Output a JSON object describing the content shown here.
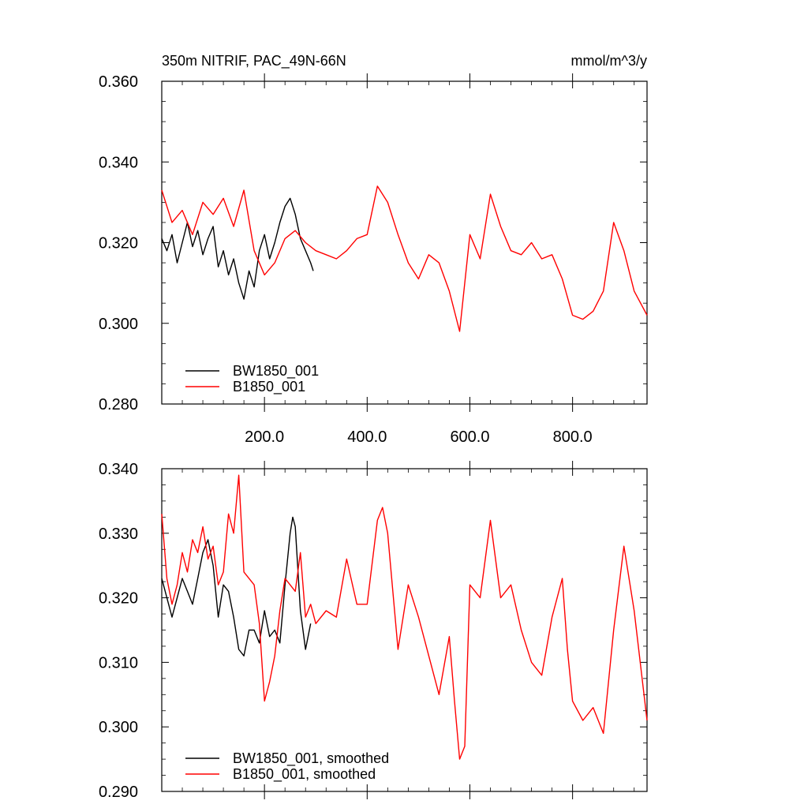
{
  "header": {
    "title": "350m NITRIF, PAC_49N-66N",
    "units": "mmol/m^3/y"
  },
  "colors": {
    "bw": "#000000",
    "b": "#ff0000"
  },
  "chart_data": [
    {
      "type": "line",
      "panel": "raw",
      "xlim": [
        0,
        945
      ],
      "ylim": [
        0.28,
        0.36
      ],
      "yticks": [
        "0.280",
        "0.300",
        "0.320",
        "0.340",
        "0.360"
      ],
      "yticks_values": [
        0.28,
        0.3,
        0.32,
        0.34,
        0.36
      ],
      "xticks": [
        "200.0",
        "400.0",
        "600.0",
        "800.0"
      ],
      "xticks_values": [
        200,
        400,
        600,
        800
      ],
      "legend_placement": "bottom-left",
      "series": [
        {
          "name": "BW1850_001",
          "color": "#000000",
          "x": [
            0,
            10,
            20,
            30,
            40,
            50,
            60,
            70,
            80,
            90,
            100,
            110,
            120,
            130,
            140,
            150,
            160,
            170,
            180,
            190,
            200,
            210,
            220,
            230,
            240,
            250,
            260,
            270,
            280,
            290,
            295
          ],
          "values": [
            0.321,
            0.318,
            0.322,
            0.315,
            0.32,
            0.325,
            0.319,
            0.323,
            0.317,
            0.321,
            0.324,
            0.314,
            0.318,
            0.312,
            0.316,
            0.31,
            0.306,
            0.313,
            0.309,
            0.318,
            0.322,
            0.316,
            0.32,
            0.325,
            0.329,
            0.331,
            0.327,
            0.321,
            0.318,
            0.315,
            0.313
          ]
        },
        {
          "name": "B1850_001",
          "color": "#ff0000",
          "x": [
            0,
            20,
            40,
            60,
            80,
            100,
            120,
            140,
            160,
            180,
            200,
            220,
            240,
            260,
            280,
            300,
            320,
            340,
            360,
            380,
            400,
            420,
            440,
            460,
            480,
            500,
            520,
            540,
            560,
            580,
            600,
            620,
            640,
            660,
            680,
            700,
            720,
            740,
            760,
            780,
            800,
            820,
            840,
            860,
            880,
            900,
            920,
            945
          ],
          "values": [
            0.333,
            0.325,
            0.328,
            0.322,
            0.33,
            0.327,
            0.331,
            0.324,
            0.333,
            0.318,
            0.312,
            0.315,
            0.321,
            0.323,
            0.32,
            0.318,
            0.317,
            0.316,
            0.318,
            0.321,
            0.322,
            0.334,
            0.33,
            0.322,
            0.315,
            0.311,
            0.317,
            0.315,
            0.308,
            0.298,
            0.322,
            0.316,
            0.332,
            0.324,
            0.318,
            0.317,
            0.32,
            0.316,
            0.317,
            0.311,
            0.302,
            0.301,
            0.303,
            0.308,
            0.325,
            0.318,
            0.308,
            0.302
          ]
        }
      ]
    },
    {
      "type": "line",
      "panel": "smoothed",
      "xlim": [
        0,
        945
      ],
      "ylim": [
        0.29,
        0.34
      ],
      "yticks": [
        "0.290",
        "0.300",
        "0.310",
        "0.320",
        "0.330",
        "0.340"
      ],
      "yticks_values": [
        0.29,
        0.3,
        0.31,
        0.32,
        0.33,
        0.34
      ],
      "legend_placement": "bottom-left",
      "series": [
        {
          "name": "BW1850_001, smoothed",
          "color": "#000000",
          "x": [
            0,
            10,
            20,
            30,
            40,
            50,
            60,
            70,
            80,
            90,
            100,
            110,
            120,
            130,
            140,
            150,
            160,
            170,
            180,
            190,
            200,
            210,
            220,
            230,
            240,
            250,
            255,
            260,
            270,
            280,
            290
          ],
          "values": [
            0.323,
            0.32,
            0.317,
            0.32,
            0.323,
            0.321,
            0.319,
            0.323,
            0.327,
            0.329,
            0.325,
            0.317,
            0.322,
            0.321,
            0.317,
            0.312,
            0.311,
            0.315,
            0.315,
            0.313,
            0.318,
            0.314,
            0.315,
            0.313,
            0.322,
            0.33,
            0.3325,
            0.331,
            0.318,
            0.312,
            0.316
          ]
        },
        {
          "name": "B1850_001, smoothed",
          "color": "#ff0000",
          "x": [
            0,
            10,
            20,
            30,
            40,
            50,
            60,
            70,
            80,
            90,
            100,
            110,
            120,
            130,
            140,
            150,
            160,
            170,
            180,
            190,
            200,
            210,
            220,
            230,
            240,
            250,
            260,
            270,
            280,
            290,
            300,
            320,
            340,
            360,
            380,
            400,
            420,
            430,
            440,
            460,
            480,
            500,
            520,
            540,
            560,
            570,
            580,
            590,
            600,
            620,
            640,
            660,
            680,
            700,
            720,
            740,
            760,
            780,
            790,
            800,
            820,
            840,
            860,
            880,
            900,
            920,
            945
          ],
          "values": [
            0.333,
            0.323,
            0.319,
            0.322,
            0.327,
            0.324,
            0.329,
            0.327,
            0.331,
            0.326,
            0.328,
            0.322,
            0.324,
            0.333,
            0.33,
            0.339,
            0.324,
            0.323,
            0.322,
            0.316,
            0.304,
            0.307,
            0.311,
            0.318,
            0.323,
            0.322,
            0.321,
            0.327,
            0.317,
            0.319,
            0.316,
            0.318,
            0.317,
            0.326,
            0.319,
            0.319,
            0.332,
            0.334,
            0.33,
            0.312,
            0.322,
            0.317,
            0.311,
            0.305,
            0.314,
            0.304,
            0.295,
            0.297,
            0.322,
            0.32,
            0.332,
            0.32,
            0.322,
            0.315,
            0.31,
            0.308,
            0.317,
            0.323,
            0.312,
            0.304,
            0.301,
            0.303,
            0.299,
            0.315,
            0.328,
            0.318,
            0.301
          ]
        }
      ]
    }
  ]
}
